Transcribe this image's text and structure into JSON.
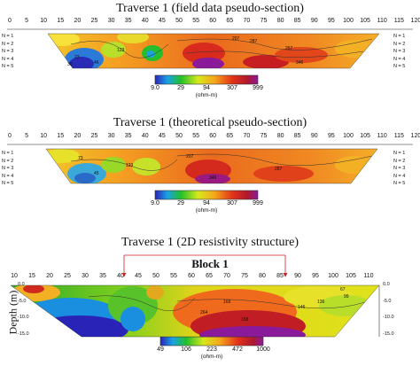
{
  "titles": {
    "field": "Traverse 1 (field data pseudo-section)",
    "theoretical": "Traverse 1 (theoretical pseudo-section)",
    "structure": "Traverse 1 (2D resistivity structure)"
  },
  "distance_ticks": [
    "0",
    "5",
    "10",
    "15",
    "20",
    "25",
    "30",
    "35",
    "40",
    "45",
    "50",
    "55",
    "60",
    "65",
    "70",
    "75",
    "80",
    "85",
    "90",
    "95",
    "100",
    "105",
    "110",
    "115",
    "120"
  ],
  "structure_ticks": [
    "10",
    "15",
    "20",
    "25",
    "30",
    "35",
    "40",
    "45",
    "50",
    "55",
    "60",
    "65",
    "70",
    "75",
    "80",
    "85",
    "90",
    "95",
    "100",
    "105",
    "110"
  ],
  "n_levels": [
    "N = 1",
    "N = 2",
    "N = 3",
    "N = 4",
    "N = 5"
  ],
  "colorbar_pseudo": {
    "labels": [
      "9.0",
      "29",
      "94",
      "307",
      "999"
    ],
    "unit": "(ohm-m)"
  },
  "colorbar_structure": {
    "labels": [
      "49",
      "106",
      "223",
      "472",
      "1000"
    ],
    "unit": "(ohm-m)"
  },
  "block": {
    "label": "Block 1",
    "from": "35",
    "to": "85"
  },
  "depth": {
    "title": "Depth (m)",
    "ticks": [
      "0.0",
      "-5.0",
      "-10.0",
      "-15.0"
    ]
  },
  "contour_labels_field": [
    "207",
    "287",
    "257",
    "123",
    "346",
    "46",
    "22",
    "30"
  ],
  "contour_labels_theoretical": [
    "73",
    "123",
    "45",
    "207",
    "287",
    "346"
  ],
  "contour_labels_structure": [
    "169",
    "264",
    "158",
    "146",
    "136",
    "99",
    "67"
  ]
}
